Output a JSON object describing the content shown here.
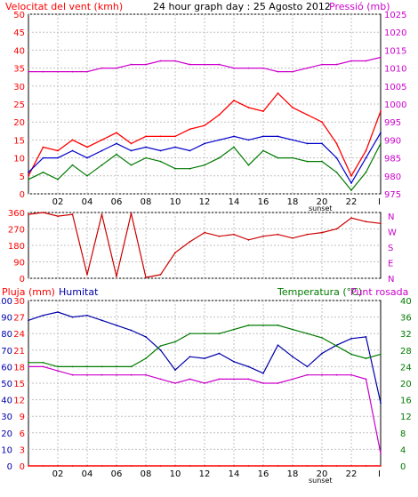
{
  "header": {
    "wind_label": "Velocitat del vent (kmh)",
    "title": "24 hour graph day : 25 Agosto 2012",
    "pressure_label": "Pressió (mb)"
  },
  "colors": {
    "border": "#000000",
    "grid": "#c0c0c0",
    "wind": "#ff0000",
    "wind_avg": "#0000cc",
    "wind_dark": "#007a00",
    "pressure": "#cc00cc",
    "direction": "#cc0000",
    "rain": "#ff0000",
    "humidity": "#0000aa",
    "temperature": "#007a00",
    "dewpoint": "#cc00cc",
    "left_axis_label": "#ff0000",
    "right_axis_label": "#cc00cc",
    "humidity_label": "#0000aa",
    "temp_label": "#007a00"
  },
  "x_axis": {
    "ticks": [
      "02",
      "04",
      "06",
      "08",
      "10",
      "12",
      "14",
      "16",
      "18",
      "20",
      "22"
    ],
    "sunset_label": "sunset",
    "end_label": "I"
  },
  "chart_data": [
    {
      "id": "wind_pressure",
      "type": "line",
      "ylabel": "Velocitat del vent (kmh)",
      "y2label": "Pressió (mb)",
      "ylim": [
        0,
        50
      ],
      "y2lim": [
        975,
        1025
      ],
      "yticks": [
        0,
        5,
        10,
        15,
        20,
        25,
        30,
        35,
        40,
        45,
        50
      ],
      "y2ticks": [
        975,
        980,
        985,
        990,
        995,
        1000,
        1005,
        1010,
        1015,
        1020,
        1025
      ],
      "x": [
        0,
        1,
        2,
        3,
        4,
        5,
        6,
        7,
        8,
        9,
        10,
        11,
        12,
        13,
        14,
        15,
        16,
        17,
        18,
        19,
        20,
        21,
        22,
        23,
        24
      ],
      "series": [
        {
          "values": [
            5,
            13,
            12,
            15,
            13,
            15,
            17,
            14,
            16,
            16,
            16,
            18,
            19,
            22,
            26,
            24,
            23,
            28,
            24,
            22,
            20,
            14,
            5,
            12,
            23
          ]
        },
        {
          "values": [
            6,
            10,
            10,
            12,
            10,
            12,
            14,
            12,
            13,
            12,
            13,
            12,
            14,
            15,
            16,
            15,
            16,
            16,
            15,
            14,
            14,
            10,
            3,
            10,
            17
          ]
        },
        {
          "values": [
            4,
            6,
            4,
            8,
            5,
            8,
            11,
            8,
            10,
            9,
            7,
            7,
            8,
            10,
            13,
            8,
            12,
            10,
            10,
            9,
            9,
            6,
            1,
            6,
            14
          ]
        },
        {
          "values": [
            1009,
            1009,
            1009,
            1009,
            1009,
            1010,
            1010,
            1011,
            1011,
            1012,
            1012,
            1011,
            1011,
            1011,
            1010,
            1010,
            1010,
            1009,
            1009,
            1010,
            1011,
            1011,
            1012,
            1012,
            1013
          ]
        }
      ]
    },
    {
      "id": "wind_direction",
      "type": "line",
      "ylim": [
        0,
        360
      ],
      "yticks": [
        0,
        90,
        180,
        270,
        360
      ],
      "y2ticks": [
        "N",
        "E",
        "S",
        "W",
        "N"
      ],
      "x": [
        0,
        1,
        2,
        3,
        4,
        5,
        6,
        7,
        8,
        9,
        10,
        11,
        12,
        13,
        14,
        15,
        16,
        17,
        18,
        19,
        20,
        21,
        22,
        23,
        24
      ],
      "series": [
        {
          "values": [
            350,
            360,
            340,
            350,
            20,
            350,
            10,
            355,
            5,
            20,
            140,
            200,
            250,
            230,
            240,
            210,
            230,
            240,
            220,
            240,
            250,
            270,
            330,
            310,
            300
          ]
        }
      ]
    },
    {
      "id": "rain_humidity_temperature",
      "type": "line",
      "ylabel": "Pluja (mm)",
      "y2label": "Humitat",
      "y3label": "Temperatura (°C)",
      "y4label": "Punt rosada",
      "ylim": [
        0,
        100
      ],
      "y2lim": [
        0,
        40
      ],
      "yticks": [
        0,
        10,
        20,
        30,
        40,
        50,
        60,
        70,
        80,
        90,
        100
      ],
      "yticks_mid": [
        0,
        3,
        6,
        9,
        12,
        15,
        18,
        21,
        24,
        27,
        30
      ],
      "y2ticks": [
        0,
        4,
        8,
        12,
        16,
        20,
        24,
        28,
        32,
        36,
        40
      ],
      "x": [
        0,
        1,
        2,
        3,
        4,
        5,
        6,
        7,
        8,
        9,
        10,
        11,
        12,
        13,
        14,
        15,
        16,
        17,
        18,
        19,
        20,
        21,
        22,
        23,
        24
      ],
      "series": [
        {
          "values": [
            0,
            0,
            0,
            0,
            0,
            0,
            0,
            0,
            0,
            0,
            0,
            0,
            0,
            0,
            0,
            0,
            0,
            0,
            0,
            0,
            0,
            0,
            0,
            0,
            0
          ]
        },
        {
          "values": [
            88,
            91,
            93,
            90,
            91,
            88,
            85,
            82,
            78,
            70,
            58,
            66,
            65,
            68,
            63,
            60,
            56,
            73,
            66,
            60,
            68,
            73,
            77,
            78,
            38
          ]
        },
        {
          "values": [
            25,
            25,
            24,
            24,
            24,
            24,
            24,
            24,
            26,
            29,
            30,
            32,
            32,
            32,
            33,
            34,
            34,
            34,
            33,
            32,
            31,
            29,
            27,
            26,
            27
          ]
        },
        {
          "values": [
            24,
            24,
            23,
            22,
            22,
            22,
            22,
            22,
            22,
            21,
            20,
            21,
            20,
            21,
            21,
            21,
            20,
            20,
            21,
            22,
            22,
            22,
            22,
            21,
            3
          ]
        }
      ]
    }
  ],
  "panel2_right_labels": [
    "N",
    "W",
    "S",
    "E",
    "N"
  ],
  "panel3_labels": {
    "rain": "Pluja (mm)",
    "humidity": "Humitat",
    "temperature": "Temperatura (°C)",
    "dewpoint": "Punt rosada"
  }
}
